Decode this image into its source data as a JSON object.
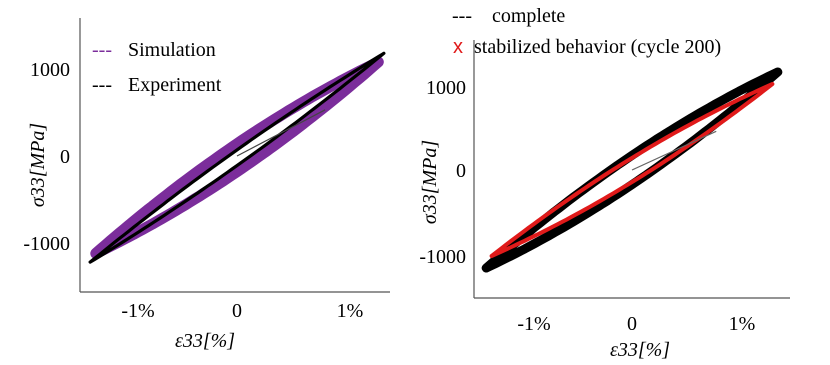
{
  "chart_data": [
    {
      "type": "line",
      "xlabel": "ε33[%]",
      "ylabel": "σ33[MPa]",
      "x_ticks": [
        "-1%",
        "0",
        "1%"
      ],
      "y_ticks": [
        "1000",
        "0",
        "-1000"
      ],
      "xlim": [
        -1.45,
        1.45
      ],
      "ylim": [
        -1450,
        1450
      ],
      "legend": {
        "position": "top-left"
      },
      "series": [
        {
          "name": "Simulation",
          "color": "#7b2d9b",
          "legend_marker": "---",
          "loop": {
            "x_amp": 1.25,
            "y_min": -1120,
            "y_max": 1080,
            "width_sigma": 160
          }
        },
        {
          "name": "Experiment",
          "color": "#000000",
          "legend_marker": "---",
          "loop": {
            "x_amp": 1.3,
            "y_min": -1220,
            "y_max": 1180,
            "width_sigma": 90
          }
        }
      ]
    },
    {
      "type": "line",
      "xlabel": "ε33[%]",
      "ylabel": "σ33[MPa]",
      "x_ticks": [
        "-1%",
        "0",
        "1%"
      ],
      "y_ticks": [
        "1000",
        "0",
        "-1000"
      ],
      "xlim": [
        -1.45,
        1.45
      ],
      "ylim": [
        -1450,
        1450
      ],
      "legend": {
        "position": "top-outside"
      },
      "series": [
        {
          "name": "complete",
          "color": "#000000",
          "legend_marker": "---",
          "loop": {
            "x_amp": 1.35,
            "y_min": -1140,
            "y_max": 1140,
            "width_sigma": 170
          }
        },
        {
          "name": "stabilized behavior (cycle 200)",
          "color": "#e01a1a",
          "legend_marker": "x",
          "loop": {
            "x_amp": 1.3,
            "y_min": -1000,
            "y_max": 1000,
            "width_sigma": 140
          }
        }
      ]
    }
  ]
}
